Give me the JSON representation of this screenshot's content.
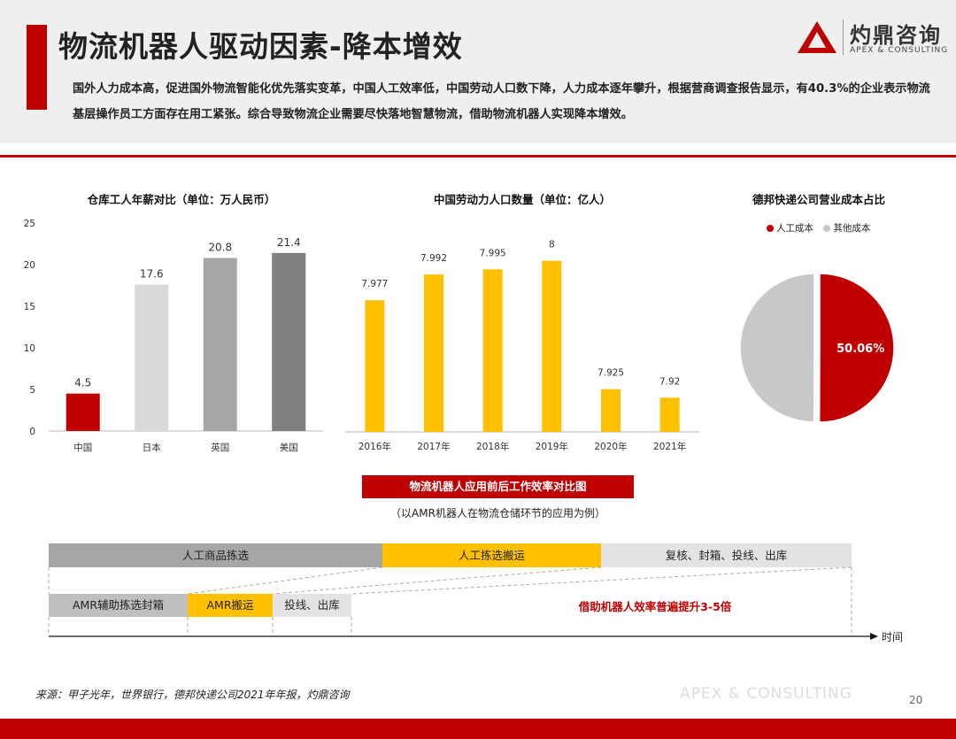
{
  "header": {
    "title": "物流机器人驱动因素-降本增效",
    "intro": "国外人力成本高，促进国外物流智能化优先落实变革，中国人工效率低，中国劳动人口数下降，人力成本逐年攀升，根据营商调查报告显示，有40.3%的企业表示物流基层操作员工方面存在用工紧张。综合导致物流企业需要尽快落地智慧物流，借助物流机器人实现降本增效。",
    "logo_cn": "灼鼎咨询",
    "logo_en": "APEX & CONSULTING",
    "accent_color": "#c00000"
  },
  "chart_data": [
    {
      "type": "bar",
      "title": "仓库工人年薪对比（单位：万人民币）",
      "categories": [
        "中国",
        "日本",
        "英国",
        "美国"
      ],
      "values": [
        4.5,
        17.6,
        20.8,
        21.4
      ],
      "colors": [
        "#c00000",
        "#d9d9d9",
        "#a6a6a6",
        "#7f7f7f"
      ],
      "yticks": [
        0,
        5,
        10,
        15,
        20,
        25
      ],
      "ylim": [
        0,
        25
      ],
      "grid": false
    },
    {
      "type": "bar",
      "title": "中国劳动力人口数量（单位：亿人）",
      "categories": [
        "2016年",
        "2017年",
        "2018年",
        "2019年",
        "2020年",
        "2021年"
      ],
      "values": [
        7.977,
        7.992,
        7.995,
        8,
        7.925,
        7.92
      ],
      "value_labels": [
        "7.977",
        "7.992",
        "7.995",
        "8",
        "7.925",
        "7.92"
      ],
      "color": "#ffc000",
      "ylim": [
        7.9,
        8.005
      ],
      "grid": false
    },
    {
      "type": "pie",
      "title": "德邦快递公司营业成本占比",
      "labels": [
        "人工成本",
        "其他成本"
      ],
      "values": [
        50.06,
        49.94
      ],
      "colors": [
        "#c00000",
        "#c8c8c8"
      ],
      "data_label": "50.06%",
      "legend": "top"
    }
  ],
  "comparison": {
    "title": "物流机器人应用前后工作效率对比图",
    "subtitle": "（以AMR机器人在物流仓储环节的应用为例）",
    "before_segments": [
      "人工商品拣选",
      "人工拣选搬运",
      "复核、封箱、投线、出库"
    ],
    "after_segments": [
      "AMR辅助拣选封箱",
      "AMR搬运",
      "投线、出库"
    ],
    "highlight": "借助机器人效率普遍提升3-5倍",
    "axis_label": "时间"
  },
  "footer": {
    "source": "来源：甲子光年，世界银行，德邦快递公司2021年年报，灼鼎咨询",
    "watermark": "APEX & CONSULTING",
    "page": "20"
  }
}
